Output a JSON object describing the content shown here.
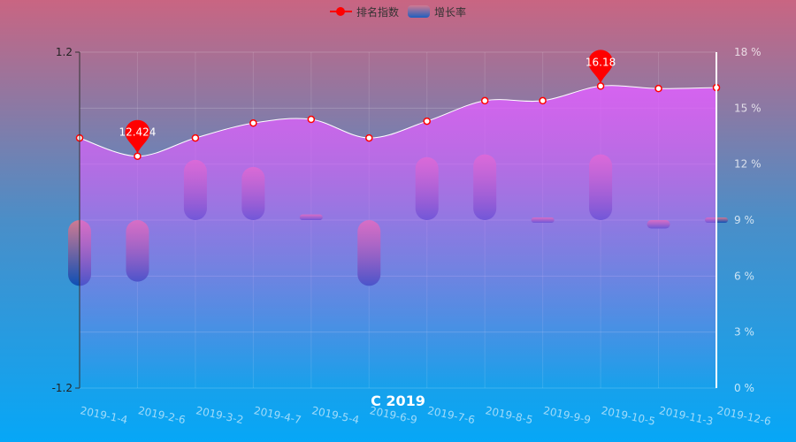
{
  "chart_data": {
    "type": "bar",
    "title": "C 2019",
    "categories": [
      "2019-1-4",
      "2019-2-6",
      "2019-3-2",
      "2019-4-7",
      "2019-5-4",
      "2019-6-9",
      "2019-7-6",
      "2019-8-5",
      "2019-9-9",
      "2019-10-5",
      "2019-11-3",
      "2019-12-6"
    ],
    "series": [
      {
        "name": "排名指数",
        "type": "line",
        "axis": "right",
        "smooth": true,
        "area": true,
        "values": [
          13.4,
          12.424,
          13.4,
          14.2,
          14.4,
          13.4,
          14.3,
          15.4,
          15.4,
          16.18,
          16.05,
          16.1
        ],
        "markPoints": [
          {
            "index": 1,
            "label": "12.424"
          },
          {
            "index": 9,
            "label": "16.18"
          }
        ]
      },
      {
        "name": "增长率",
        "type": "bar",
        "axis": "left",
        "values": [
          -0.47,
          -0.44,
          0.43,
          0.38,
          0.04,
          -0.47,
          0.45,
          0.47,
          0.02,
          0.47,
          -0.06,
          0.02
        ]
      }
    ],
    "yAxisLeft": {
      "min": -1.2,
      "max": 1.2,
      "tickLabels": [
        "1.2",
        "-1.2"
      ]
    },
    "yAxisRight": {
      "min": 0,
      "max": 18,
      "tickLabels": [
        "0 %",
        "3 %",
        "6 %",
        "9 %",
        "12 %",
        "15 %",
        "18 %"
      ]
    },
    "grid": true,
    "legend": "top-center",
    "colors": {
      "line": "#ff0000",
      "area_top": "#e060ff",
      "bar_top": "#d07a92",
      "bar_bottom": "#0d4fb5"
    }
  }
}
